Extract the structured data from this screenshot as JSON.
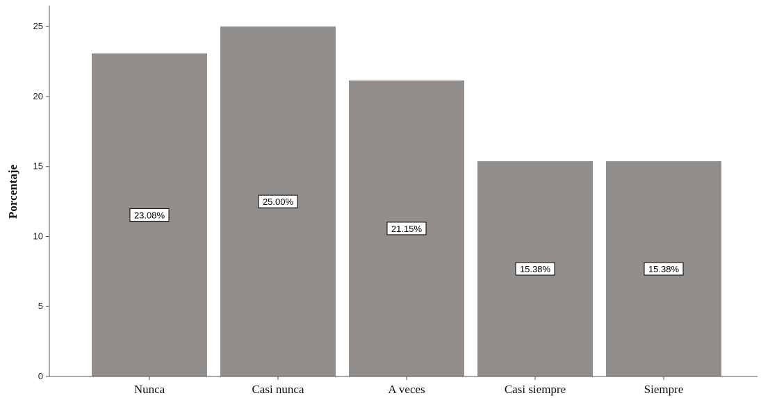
{
  "chart_data": {
    "type": "bar",
    "categories": [
      "Nunca",
      "Casi nunca",
      "A veces",
      "Casi siempre",
      "Siempre"
    ],
    "values": [
      23.08,
      25.0,
      21.15,
      15.38,
      15.38
    ],
    "data_labels": [
      "23.08%",
      "25.00%",
      "21.15%",
      "15.38%",
      "15.38%"
    ],
    "title": "",
    "xlabel": "",
    "ylabel": "Porcentaje",
    "ylim": [
      0,
      26.5
    ],
    "yticks": [
      0,
      5,
      10,
      15,
      20,
      25
    ],
    "ytick_labels": [
      "0",
      "5",
      "10",
      "15",
      "20",
      "25"
    ],
    "grid": false,
    "legend": "none",
    "bar_color": "#928e8c",
    "axis_color": "#555555"
  }
}
